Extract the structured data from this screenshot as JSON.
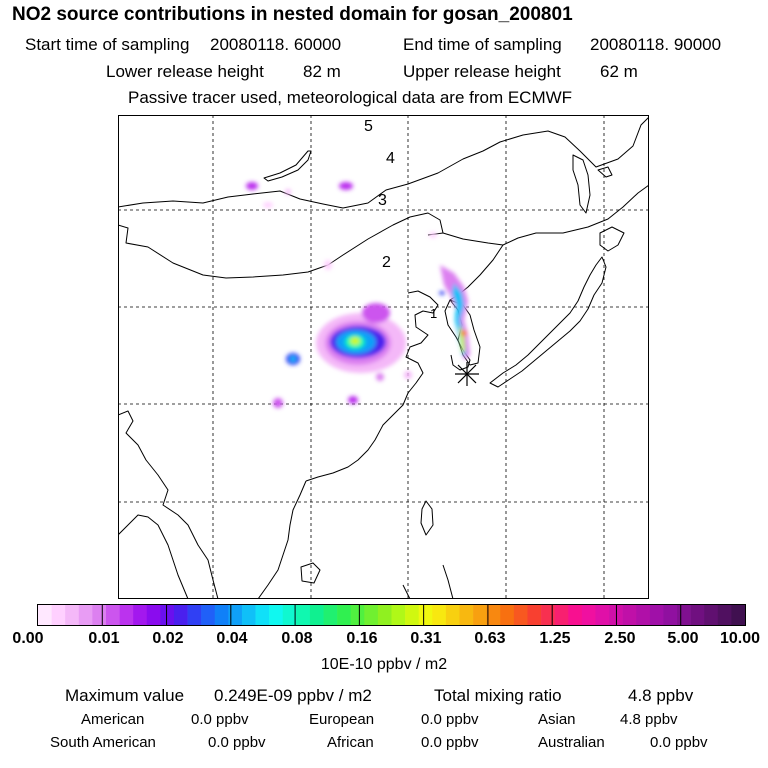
{
  "header": {
    "title": "NO2 source contributions in nested domain for gosan_200801",
    "start_label": "Start time of sampling",
    "start_value": "20080118. 60000",
    "end_label": "End time of sampling",
    "end_value": "20080118. 90000",
    "lower_label": "Lower release height",
    "lower_value": "82 m",
    "upper_label": "Upper release height",
    "upper_value": "62 m",
    "note": "Passive tracer used, meteorological data are from ECMWF"
  },
  "map": {
    "day_labels": [
      "5",
      "4",
      "3",
      "2",
      "1"
    ],
    "receptor_icon": "asterisk-icon"
  },
  "colorbar": {
    "ticks": [
      "0.00",
      "0.01",
      "0.02",
      "0.04",
      "0.08",
      "0.16",
      "0.31",
      "0.63",
      "1.25",
      "2.50",
      "5.00",
      "10.00"
    ],
    "unit": "10E-10 ppbv / m2",
    "colors": [
      "#ffe8ff",
      "#ffd0ff",
      "#f4b8f8",
      "#e89cf4",
      "#dc80f0",
      "#cc55ee",
      "#bb33ee",
      "#a318ee",
      "#8a0cee",
      "#6a10ee",
      "#4a20ee",
      "#3040f4",
      "#2060f8",
      "#1080f8",
      "#10a0f8",
      "#10c0f8",
      "#10e0f8",
      "#10f8f0",
      "#10f8d0",
      "#10f8b0",
      "#10f090",
      "#20f070",
      "#30f050",
      "#50f040",
      "#70f030",
      "#90f020",
      "#b0f818",
      "#d0f810",
      "#f0f810",
      "#f8e810",
      "#f8d010",
      "#f8b810",
      "#f8a010",
      "#f88810",
      "#f87010",
      "#f85820",
      "#f84030",
      "#f83050",
      "#f82070",
      "#f81090",
      "#f010a0",
      "#e010a8",
      "#d010a8",
      "#c010a8",
      "#b010a8",
      "#a010a8",
      "#9010a0",
      "#801090",
      "#701080",
      "#601070",
      "#501060",
      "#401050"
    ]
  },
  "summary": {
    "max_label": "Maximum value",
    "max_value": "0.249E-09 ppbv / m2",
    "total_label": "Total mixing ratio",
    "total_value": "4.8 ppbv"
  },
  "regions": [
    {
      "name": "American",
      "value": "0.0 ppbv"
    },
    {
      "name": "European",
      "value": "0.0 ppbv"
    },
    {
      "name": "Asian",
      "value": "4.8 ppbv"
    },
    {
      "name": "South American",
      "value": "0.0 ppbv"
    },
    {
      "name": "African",
      "value": "0.0 ppbv"
    },
    {
      "name": "Australian",
      "value": "0.0 ppbv"
    }
  ]
}
